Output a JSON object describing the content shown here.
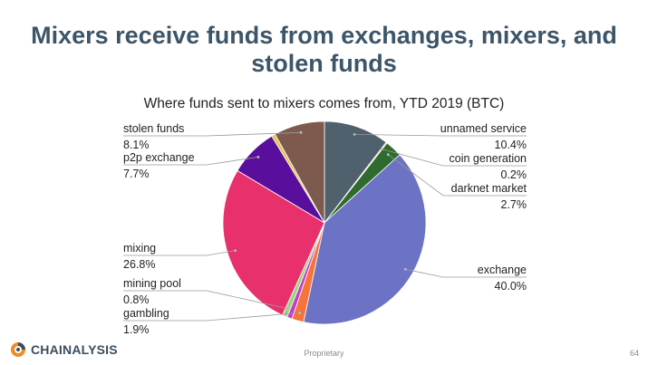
{
  "slide": {
    "title_line1": "Mixers receive funds from exchanges, mixers, and",
    "title_line2": "stolen funds",
    "brand": "CHAINALYSIS",
    "footer_label": "Proprietary",
    "page_number": "64",
    "title_color": "#3d5568"
  },
  "chart_data": {
    "type": "pie",
    "title": "Where funds sent to mixers comes from, YTD 2019 (BTC)",
    "start_angle_deg": 0,
    "direction": "clockwise",
    "slices": [
      {
        "label": "unnamed service",
        "value": 10.4,
        "display": "10.4%",
        "color": "#4e616d"
      },
      {
        "label": "coin generation",
        "value": 0.2,
        "display": "0.2%",
        "color": "#f2c14e"
      },
      {
        "label": "darknet market",
        "value": 2.7,
        "display": "2.7%",
        "color": "#2f6b2f"
      },
      {
        "label": "exchange",
        "value": 40.0,
        "display": "40.0%",
        "color": "#6c72c4"
      },
      {
        "label": "gambling",
        "value": 1.9,
        "display": "1.9%",
        "color": "#f4743b"
      },
      {
        "label": "",
        "value": 0.8,
        "display": "",
        "color": "#c03fc8"
      },
      {
        "label": "mining pool",
        "value": 0.8,
        "display": "0.8%",
        "color": "#9bd67a"
      },
      {
        "label": "mixing",
        "value": 26.8,
        "display": "26.8%",
        "color": "#e8306d"
      },
      {
        "label": "p2p exchange",
        "value": 7.7,
        "display": "7.7%",
        "color": "#5a0f9c"
      },
      {
        "label": "",
        "value": 0.6,
        "display": "",
        "color": "#e7c34d"
      },
      {
        "label": "stolen funds",
        "value": 8.1,
        "display": "8.1%",
        "color": "#7e5a4e"
      }
    ]
  }
}
